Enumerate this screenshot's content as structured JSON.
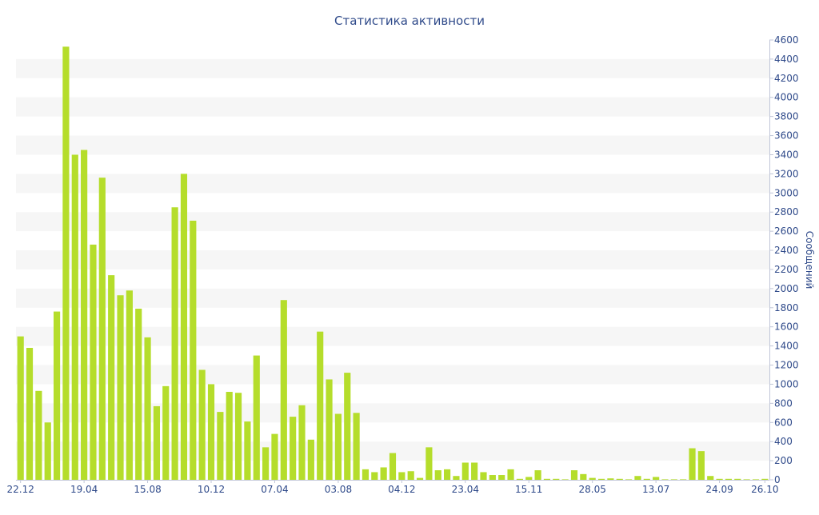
{
  "chart_data": {
    "type": "bar",
    "title": "Статистика активности",
    "xlabel": "",
    "ylabel": "Сообщений",
    "ylim": [
      0,
      4600
    ],
    "yticks": [
      0,
      200,
      400,
      600,
      800,
      1000,
      1200,
      1400,
      1600,
      1800,
      2000,
      2200,
      2400,
      2600,
      2800,
      3000,
      3200,
      3400,
      3600,
      3800,
      4000,
      4200,
      4400,
      4600
    ],
    "xtick_labels": [
      {
        "label": "22.12",
        "index": 0
      },
      {
        "label": "19.04",
        "index": 7
      },
      {
        "label": "15.08",
        "index": 14
      },
      {
        "label": "10.12",
        "index": 21
      },
      {
        "label": "07.04",
        "index": 28
      },
      {
        "label": "03.08",
        "index": 35
      },
      {
        "label": "04.12",
        "index": 42
      },
      {
        "label": "23.04",
        "index": 49
      },
      {
        "label": "15.11",
        "index": 56
      },
      {
        "label": "28.05",
        "index": 63
      },
      {
        "label": "13.07",
        "index": 70
      },
      {
        "label": "24.09",
        "index": 77
      },
      {
        "label": "26.10",
        "index": 82
      }
    ],
    "bar_color": "#b5dd2b",
    "grid": "alternating horizontal bands",
    "y_axis_position": "right",
    "values": [
      1500,
      1380,
      930,
      600,
      1760,
      4530,
      3400,
      3450,
      2460,
      3160,
      2140,
      1930,
      1980,
      1790,
      1490,
      770,
      980,
      2850,
      3200,
      2710,
      1150,
      1000,
      710,
      920,
      910,
      610,
      1300,
      340,
      480,
      1880,
      660,
      780,
      420,
      1550,
      1050,
      690,
      1120,
      700,
      110,
      80,
      130,
      280,
      80,
      90,
      20,
      340,
      100,
      110,
      40,
      180,
      180,
      80,
      50,
      50,
      110,
      10,
      30,
      100,
      10,
      10,
      5,
      100,
      60,
      20,
      10,
      15,
      10,
      5,
      40,
      10,
      30,
      5,
      5,
      5,
      330,
      300,
      40,
      10,
      10,
      10,
      5,
      5,
      10
    ]
  }
}
